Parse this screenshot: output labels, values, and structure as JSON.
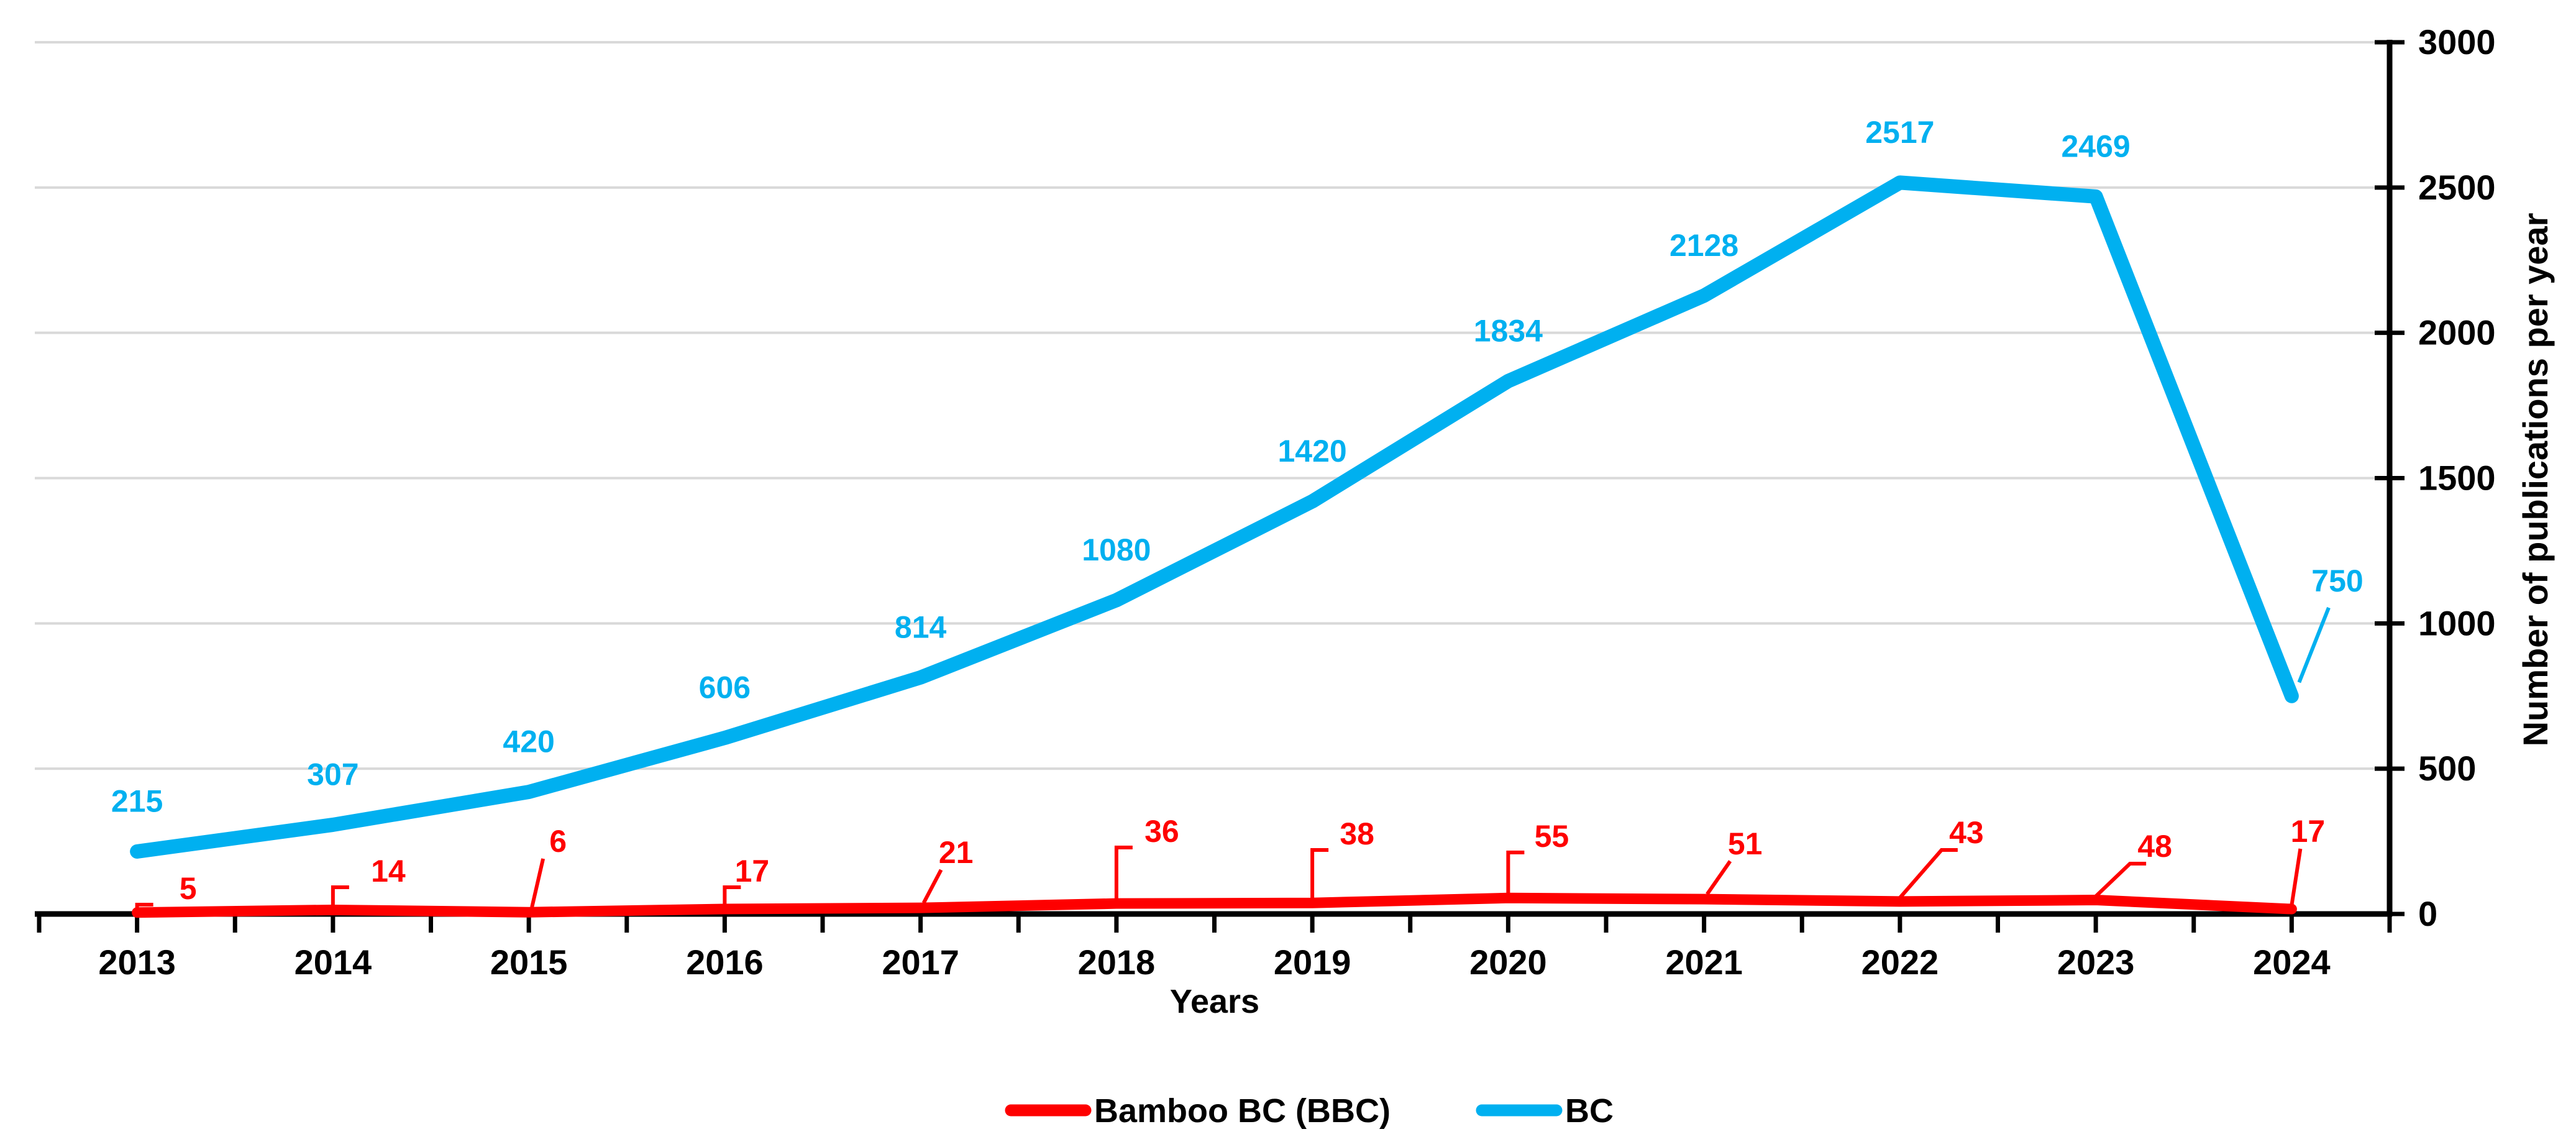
{
  "chart_data": {
    "type": "line",
    "title": "",
    "xlabel": "Years",
    "ylabel": "Number of publications per year",
    "categories": [
      "2013",
      "2014",
      "2015",
      "2016",
      "2017",
      "2018",
      "2019",
      "2020",
      "2021",
      "2022",
      "2023",
      "2024"
    ],
    "series": [
      {
        "name": "Bamboo BC (BBC)",
        "color": "#FE0000",
        "values": [
          5,
          14,
          6,
          17,
          21,
          36,
          38,
          55,
          51,
          43,
          48,
          17
        ]
      },
      {
        "name": "BC",
        "color": "#00B0F0",
        "values": [
          215,
          307,
          420,
          606,
          814,
          1080,
          1420,
          1834,
          2128,
          2517,
          2469,
          750
        ]
      }
    ],
    "ylim": [
      0,
      3000
    ],
    "yticks": [
      0,
      500,
      1000,
      1500,
      2000,
      2500,
      3000
    ],
    "grid": "horizontal",
    "legend_position": "bottom",
    "data_labels": "every point labeled with its value; BBC labels attached with red leader lines, BC 2024 label attached with cyan leader line"
  },
  "colors": {
    "bbc_red": "#FE0000",
    "bc_cyan": "#00B0F0",
    "axis_black": "#000000",
    "gridline_gray": "#D9D9D9",
    "background": "#FFFFFF"
  },
  "legend": {
    "items": [
      {
        "label": "Bamboo BC (BBC)",
        "color": "#FE0000"
      },
      {
        "label": "BC",
        "color": "#00B0F0"
      }
    ]
  }
}
